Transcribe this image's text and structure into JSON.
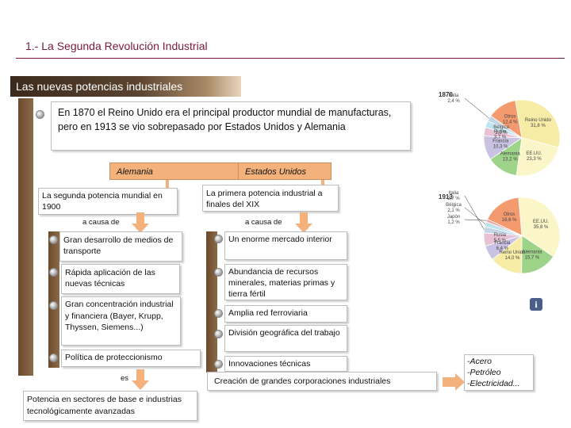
{
  "header": {
    "title": "1.- La Segunda Revolución Industrial",
    "banner": "Las nuevas potencias industriales"
  },
  "intro": "En 1870 el Reino Unido era el principal productor mundial de manufacturas, pero en 1913 se vio sobrepasado por Estados Unidos y Alemania",
  "germany": {
    "label": "Alemania",
    "summary": "La segunda potencia mundial en 1900",
    "cause": "a causa de",
    "causes": [
      "Gran desarrollo de medios de transporte",
      "Rápida aplicación de las nuevas técnicas",
      "Gran concentración industrial y financiera (Bayer, Krupp, Thyssen, Siemens...)",
      "Política de proteccionismo"
    ],
    "result_connector": "es",
    "result": "Potencia en sectores de base e industrias tecnológicamente avanzadas"
  },
  "usa": {
    "label": "Estados Unidos",
    "summary": "La primera potencia industrial a finales del XIX",
    "cause": "a causa de",
    "causes": [
      "Un enorme mercado interior",
      "Abundancia de recursos minerales, materias primas y tierra fértil",
      "Amplia red ferroviaria",
      "División geográfica del trabajo",
      "Innovaciones técnicas"
    ],
    "result": "Creación de grandes corporaciones industriales"
  },
  "products": [
    "-Acero",
    "-Petróleo",
    "-Electricidad..."
  ],
  "chart_data": [
    {
      "type": "pie",
      "title": "1870",
      "slices": [
        {
          "label": "Reino Unido",
          "value": 31.8,
          "text": "31,8 %",
          "color": "#f6eca5"
        },
        {
          "label": "EE.UU.",
          "value": 23.3,
          "text": "23,3 %",
          "color": "#fbf6c8"
        },
        {
          "label": "Alemania",
          "value": 13.2,
          "text": "13,2 %",
          "color": "#9ed48a"
        },
        {
          "label": "Francia",
          "value": 10.3,
          "text": "10,3 %",
          "color": "#c9c2e3"
        },
        {
          "label": "Rusia",
          "value": 3.7,
          "text": "3,7 %",
          "color": "#e7c2d7"
        },
        {
          "label": "Bélgica",
          "value": 2.9,
          "text": "2,9 %",
          "color": "#bfe3ee"
        },
        {
          "label": "Italia",
          "value": 2.4,
          "text": "2,4 %",
          "color": "#c3d6e6"
        },
        {
          "label": "Otros",
          "value": 12.4,
          "text": "12,4 %",
          "color": "#f39a6e"
        }
      ]
    },
    {
      "type": "pie",
      "title": "1913",
      "slices": [
        {
          "label": "EE.UU.",
          "value": 35.8,
          "text": "35,8 %",
          "color": "#fbf6c8"
        },
        {
          "label": "Alemania",
          "value": 15.7,
          "text": "15,7 %",
          "color": "#9ed48a"
        },
        {
          "label": "Reino Unido",
          "value": 14.0,
          "text": "14,0 %",
          "color": "#f6eca5"
        },
        {
          "label": "Francia",
          "value": 6.4,
          "text": "6,4 %",
          "color": "#c9c2e3"
        },
        {
          "label": "Rusia",
          "value": 5.5,
          "text": "5,5 %",
          "color": "#e7c2d7"
        },
        {
          "label": "Italia",
          "value": 2.7,
          "text": "2,7 %",
          "color": "#c3d6e6"
        },
        {
          "label": "Bélgica",
          "value": 2.1,
          "text": "2,1 %",
          "color": "#bfe3ee"
        },
        {
          "label": "Japón",
          "value": 1.2,
          "text": "1,2 %",
          "color": "#f2a6a6"
        },
        {
          "label": "Otros",
          "value": 16.6,
          "text": "16,6 %",
          "color": "#f39a6e"
        }
      ]
    }
  ],
  "icons": {
    "info": "info-icon",
    "bullet": "bullet-icon",
    "arrow": "arrow-icon"
  }
}
